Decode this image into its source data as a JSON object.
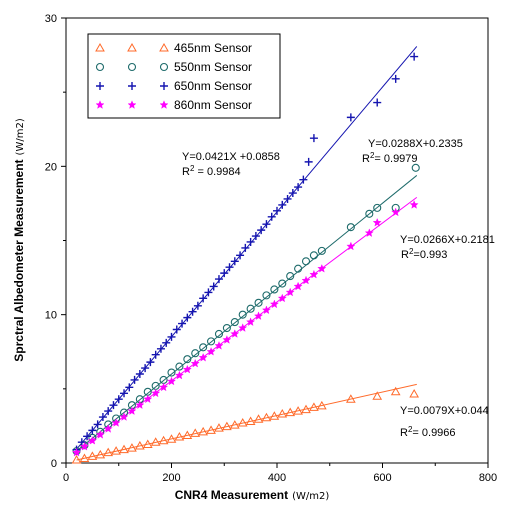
{
  "chart_data": {
    "type": "scatter",
    "xlim": [
      0,
      800
    ],
    "ylim": [
      0,
      30
    ],
    "xticks": [
      "0",
      "200",
      "400",
      "600",
      "800"
    ],
    "yticks": [
      "0",
      "10",
      "20",
      "30"
    ],
    "xlabel": "CNR4 Measurement",
    "xunit": "(W/m2)",
    "ylabel": "Sprctral Albedometer Measurement",
    "yunit": "(W/m2)",
    "legend_position": "top-left",
    "grid": false,
    "series": [
      {
        "name": "465nm Sensor",
        "marker": "triangle",
        "color": "#FF6A2A",
        "slope": 0.0079,
        "intercept": 0.044,
        "fit_range": [
          20,
          665
        ],
        "equation": "Y=0.0079X+0.044",
        "r2": "0.9966",
        "points": [
          [
            20,
            0.2
          ],
          [
            35,
            0.3
          ],
          [
            50,
            0.45
          ],
          [
            65,
            0.55
          ],
          [
            80,
            0.7
          ],
          [
            95,
            0.8
          ],
          [
            110,
            0.9
          ],
          [
            125,
            1.0
          ],
          [
            140,
            1.15
          ],
          [
            155,
            1.25
          ],
          [
            170,
            1.4
          ],
          [
            185,
            1.5
          ],
          [
            200,
            1.6
          ],
          [
            215,
            1.75
          ],
          [
            230,
            1.85
          ],
          [
            245,
            2.0
          ],
          [
            260,
            2.1
          ],
          [
            275,
            2.2
          ],
          [
            290,
            2.35
          ],
          [
            305,
            2.45
          ],
          [
            320,
            2.55
          ],
          [
            335,
            2.7
          ],
          [
            350,
            2.8
          ],
          [
            365,
            2.95
          ],
          [
            380,
            3.05
          ],
          [
            395,
            3.15
          ],
          [
            410,
            3.3
          ],
          [
            425,
            3.4
          ],
          [
            440,
            3.5
          ],
          [
            455,
            3.6
          ],
          [
            470,
            3.75
          ],
          [
            485,
            3.85
          ],
          [
            540,
            4.3
          ],
          [
            590,
            4.5
          ],
          [
            625,
            4.8
          ],
          [
            660,
            4.65
          ]
        ]
      },
      {
        "name": "550nm Sensor",
        "marker": "circle",
        "color": "#1E6B6B",
        "slope": 0.0288,
        "intercept": 0.2335,
        "fit_range": [
          20,
          665
        ],
        "equation": "Y=0.0288X+0.2335",
        "r2": "0.9979",
        "points": [
          [
            20,
            0.8
          ],
          [
            35,
            1.2
          ],
          [
            50,
            1.7
          ],
          [
            65,
            2.1
          ],
          [
            80,
            2.6
          ],
          [
            95,
            3.0
          ],
          [
            110,
            3.4
          ],
          [
            125,
            3.9
          ],
          [
            140,
            4.3
          ],
          [
            155,
            4.8
          ],
          [
            170,
            5.2
          ],
          [
            185,
            5.6
          ],
          [
            200,
            6.1
          ],
          [
            215,
            6.5
          ],
          [
            230,
            7.0
          ],
          [
            245,
            7.4
          ],
          [
            260,
            7.8
          ],
          [
            275,
            8.2
          ],
          [
            290,
            8.7
          ],
          [
            305,
            9.1
          ],
          [
            320,
            9.5
          ],
          [
            335,
            10.0
          ],
          [
            350,
            10.4
          ],
          [
            365,
            10.8
          ],
          [
            380,
            11.3
          ],
          [
            395,
            11.7
          ],
          [
            410,
            12.1
          ],
          [
            425,
            12.6
          ],
          [
            440,
            13.1
          ],
          [
            455,
            13.6
          ],
          [
            470,
            14.0
          ],
          [
            485,
            14.3
          ],
          [
            540,
            15.9
          ],
          [
            575,
            16.8
          ],
          [
            590,
            17.2
          ],
          [
            625,
            17.2
          ],
          [
            663,
            19.9
          ]
        ]
      },
      {
        "name": "650nm Sensor",
        "marker": "plus",
        "color": "#1515B0",
        "slope": 0.0421,
        "intercept": 0.0858,
        "fit_range": [
          20,
          665
        ],
        "equation": "Y=0.0421X +0.0858",
        "r2": "0.9984",
        "points": [
          [
            20,
            0.9
          ],
          [
            30,
            1.4
          ],
          [
            40,
            1.8
          ],
          [
            50,
            2.2
          ],
          [
            60,
            2.6
          ],
          [
            70,
            3.1
          ],
          [
            80,
            3.5
          ],
          [
            90,
            3.9
          ],
          [
            100,
            4.3
          ],
          [
            110,
            4.7
          ],
          [
            120,
            5.1
          ],
          [
            130,
            5.6
          ],
          [
            140,
            6.0
          ],
          [
            150,
            6.4
          ],
          [
            160,
            6.8
          ],
          [
            170,
            7.3
          ],
          [
            180,
            7.7
          ],
          [
            190,
            8.1
          ],
          [
            200,
            8.5
          ],
          [
            210,
            9.0
          ],
          [
            220,
            9.4
          ],
          [
            230,
            9.8
          ],
          [
            240,
            10.2
          ],
          [
            250,
            10.6
          ],
          [
            260,
            11.1
          ],
          [
            270,
            11.5
          ],
          [
            280,
            11.9
          ],
          [
            290,
            12.4
          ],
          [
            300,
            12.8
          ],
          [
            310,
            13.2
          ],
          [
            320,
            13.6
          ],
          [
            330,
            14.0
          ],
          [
            340,
            14.5
          ],
          [
            350,
            14.9
          ],
          [
            360,
            15.3
          ],
          [
            370,
            15.7
          ],
          [
            380,
            16.1
          ],
          [
            390,
            16.6
          ],
          [
            400,
            17.0
          ],
          [
            410,
            17.4
          ],
          [
            420,
            17.8
          ],
          [
            430,
            18.2
          ],
          [
            440,
            18.6
          ],
          [
            450,
            19.1
          ],
          [
            460,
            20.3
          ],
          [
            470,
            21.9
          ],
          [
            540,
            23.3
          ],
          [
            590,
            24.3
          ],
          [
            625,
            25.9
          ],
          [
            660,
            27.4
          ]
        ]
      },
      {
        "name": "860nm Sensor",
        "marker": "star",
        "color": "#FF00FF",
        "slope": 0.0266,
        "intercept": 0.2181,
        "fit_range": [
          20,
          665
        ],
        "equation": "Y=0.0266X+0.2181",
        "r2": "0.993",
        "points": [
          [
            20,
            0.7
          ],
          [
            35,
            1.1
          ],
          [
            50,
            1.5
          ],
          [
            65,
            1.9
          ],
          [
            80,
            2.3
          ],
          [
            95,
            2.7
          ],
          [
            110,
            3.1
          ],
          [
            125,
            3.5
          ],
          [
            140,
            3.9
          ],
          [
            155,
            4.3
          ],
          [
            170,
            4.7
          ],
          [
            185,
            5.1
          ],
          [
            200,
            5.5
          ],
          [
            215,
            5.9
          ],
          [
            230,
            6.3
          ],
          [
            245,
            6.7
          ],
          [
            260,
            7.1
          ],
          [
            275,
            7.5
          ],
          [
            290,
            7.9
          ],
          [
            305,
            8.3
          ],
          [
            320,
            8.7
          ],
          [
            335,
            9.1
          ],
          [
            350,
            9.5
          ],
          [
            365,
            9.9
          ],
          [
            380,
            10.3
          ],
          [
            395,
            10.7
          ],
          [
            410,
            11.1
          ],
          [
            425,
            11.5
          ],
          [
            440,
            11.9
          ],
          [
            455,
            12.3
          ],
          [
            470,
            12.7
          ],
          [
            485,
            13.1
          ],
          [
            540,
            14.6
          ],
          [
            575,
            15.5
          ],
          [
            590,
            16.2
          ],
          [
            625,
            16.9
          ],
          [
            660,
            17.4
          ]
        ]
      }
    ]
  }
}
